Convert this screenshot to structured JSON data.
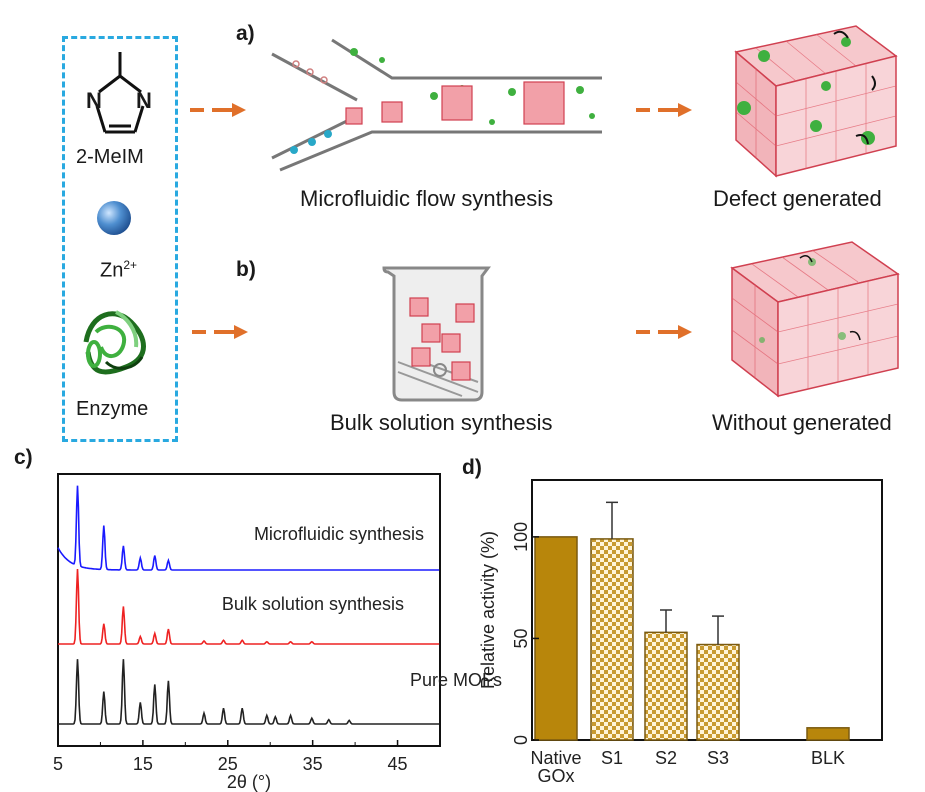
{
  "panels": {
    "a": {
      "label": "a)",
      "caption": "Microfluidic flow synthesis",
      "result": "Defect generated"
    },
    "b": {
      "label": "b)",
      "caption": "Bulk solution synthesis",
      "result": "Without generated"
    },
    "c": {
      "label": "c)"
    },
    "d": {
      "label": "d)"
    }
  },
  "reagents": {
    "mol_n1": "N",
    "mol_n2": "N",
    "ligand": "2-MeIM",
    "metal_base": "Zn",
    "metal_charge": "2+",
    "enzyme": "Enzyme"
  },
  "colors": {
    "dash_box": "#29a9e0",
    "arrow": "#e0702a",
    "mof": "#e06070",
    "enzyme_green": "#3fb03f",
    "bar_gold": "#b8860b",
    "xrd_blue": "#1a1aff",
    "xrd_red": "#ee2222",
    "xrd_black": "#222222"
  },
  "chart_data": [
    {
      "type": "line",
      "xlabel": "2θ (°)",
      "xlim": [
        5,
        50
      ],
      "x_ticks": [
        "5",
        "15",
        "25",
        "35",
        "45"
      ],
      "ylabel": "",
      "series": [
        {
          "name": "Microfluidic synthesis",
          "color": "#1a1aff",
          "peaks": [
            [
              7.3,
              1.0
            ],
            [
              10.4,
              0.55
            ],
            [
              12.7,
              0.3
            ],
            [
              14.7,
              0.15
            ],
            [
              16.4,
              0.18
            ],
            [
              18.0,
              0.12
            ]
          ]
        },
        {
          "name": "Bulk solution synthesis",
          "color": "#ee2222",
          "peaks": [
            [
              7.3,
              1.0
            ],
            [
              10.4,
              0.27
            ],
            [
              12.7,
              0.5
            ],
            [
              14.7,
              0.1
            ],
            [
              16.4,
              0.14
            ],
            [
              18.0,
              0.2
            ],
            [
              22.2,
              0.04
            ],
            [
              24.5,
              0.05
            ],
            [
              26.7,
              0.05
            ],
            [
              29.6,
              0.03
            ],
            [
              32.4,
              0.03
            ],
            [
              34.9,
              0.03
            ]
          ]
        },
        {
          "name": "Pure MOFs",
          "color": "#222222",
          "peaks": [
            [
              7.3,
              0.9
            ],
            [
              10.4,
              0.45
            ],
            [
              12.7,
              0.9
            ],
            [
              14.7,
              0.3
            ],
            [
              16.4,
              0.55
            ],
            [
              18.0,
              0.6
            ],
            [
              22.2,
              0.15
            ],
            [
              24.5,
              0.22
            ],
            [
              26.7,
              0.22
            ],
            [
              29.6,
              0.12
            ],
            [
              30.6,
              0.1
            ],
            [
              32.4,
              0.12
            ],
            [
              34.9,
              0.08
            ],
            [
              36.9,
              0.06
            ],
            [
              39.3,
              0.05
            ]
          ]
        }
      ]
    },
    {
      "type": "bar",
      "categories": [
        "Native\nGOx",
        "S1",
        "S2",
        "S3",
        "BLK"
      ],
      "category_lines": [
        [
          "Native",
          "GOx"
        ],
        [
          "S1"
        ],
        [
          "S2"
        ],
        [
          "S3"
        ],
        [
          "BLK"
        ]
      ],
      "values": [
        100,
        99,
        53,
        47,
        6
      ],
      "errors": [
        0,
        18,
        11,
        14,
        0
      ],
      "fills": [
        "solid",
        "checker",
        "checker",
        "checker",
        "solid"
      ],
      "ylabel": "Relative activity (%)",
      "ylim": [
        0,
        128
      ],
      "y_ticks": [
        "0",
        "50",
        "100"
      ]
    }
  ]
}
